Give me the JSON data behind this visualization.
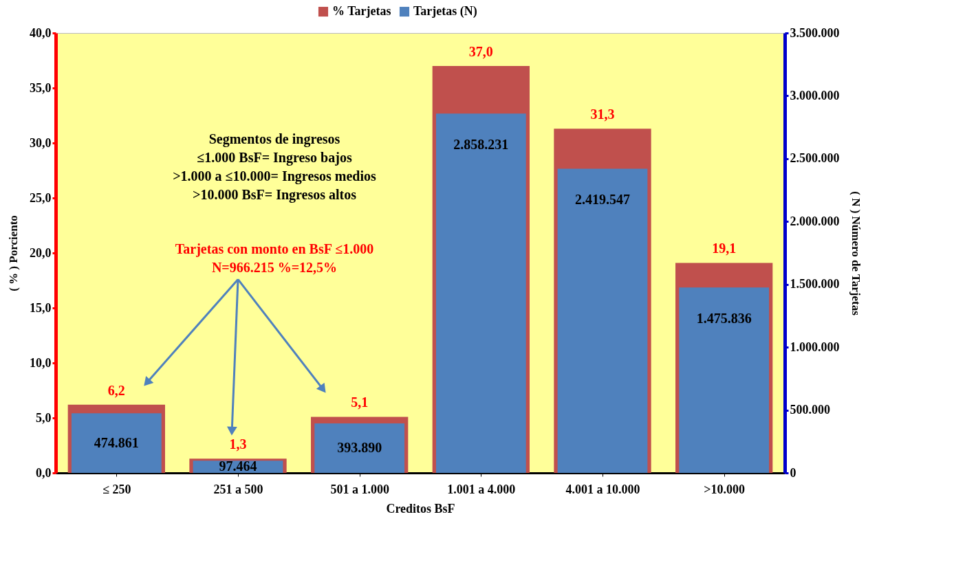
{
  "chart_data": {
    "type": "bar",
    "xlabel": "Creditos BsF",
    "ylabel": "( % ) Porciento",
    "y2label": "( N ) Número de Tarjetas",
    "categories": [
      "≤ 250",
      "251 a 500",
      "501 a 1.000",
      "1.001 a 4.000",
      "4.001 a 10.000",
      ">10.000"
    ],
    "series": [
      {
        "name": "% Tarjetas",
        "color": "#c0504d",
        "values": [
          6.2,
          1.3,
          5.1,
          37.0,
          31.3,
          19.1
        ],
        "value_labels": [
          "6,2",
          "1,3",
          "5,1",
          "37,0",
          "31,3",
          "19,1"
        ]
      },
      {
        "name": "Tarjetas (N)",
        "color": "#4f81bd",
        "axis": "y2",
        "values": [
          474861,
          97464,
          393890,
          2858231,
          2419547,
          1475836
        ],
        "value_labels": [
          "474.861",
          "97.464",
          "393.890",
          "2.858.231",
          "2.419.547",
          "1.475.836"
        ]
      }
    ],
    "ylim": [
      0,
      40
    ],
    "yticks": [
      {
        "value": 0,
        "label": "0,0"
      },
      {
        "value": 5,
        "label": "5,0"
      },
      {
        "value": 10,
        "label": "10,0"
      },
      {
        "value": 15,
        "label": "15,0"
      },
      {
        "value": 20,
        "label": "20,0"
      },
      {
        "value": 25,
        "label": "25,0"
      },
      {
        "value": 30,
        "label": "30,0"
      },
      {
        "value": 35,
        "label": "35,0"
      },
      {
        "value": 40,
        "label": "40,0"
      }
    ],
    "y2lim": [
      0,
      3500000
    ],
    "y2ticks": [
      {
        "value": 0,
        "label": "0"
      },
      {
        "value": 500000,
        "label": "500.000"
      },
      {
        "value": 1000000,
        "label": "1.000.000"
      },
      {
        "value": 1500000,
        "label": "1.500.000"
      },
      {
        "value": 2000000,
        "label": "2.000.000"
      },
      {
        "value": 2500000,
        "label": "2.500.000"
      },
      {
        "value": 3000000,
        "label": "3.000.000"
      },
      {
        "value": 3500000,
        "label": "3.500.000"
      }
    ],
    "annotations": [
      "Segmentos  de ingresos\n≤1.000 BsF= Ingreso bajos\n>1.000 a ≤10.000= Ingresos medios\n>10.000 BsF= Ingresos altos",
      "Tarjetas con monto en BsF ≤1.000\nN=966.215 %=12,5%"
    ],
    "legend": "top",
    "grid": false
  }
}
